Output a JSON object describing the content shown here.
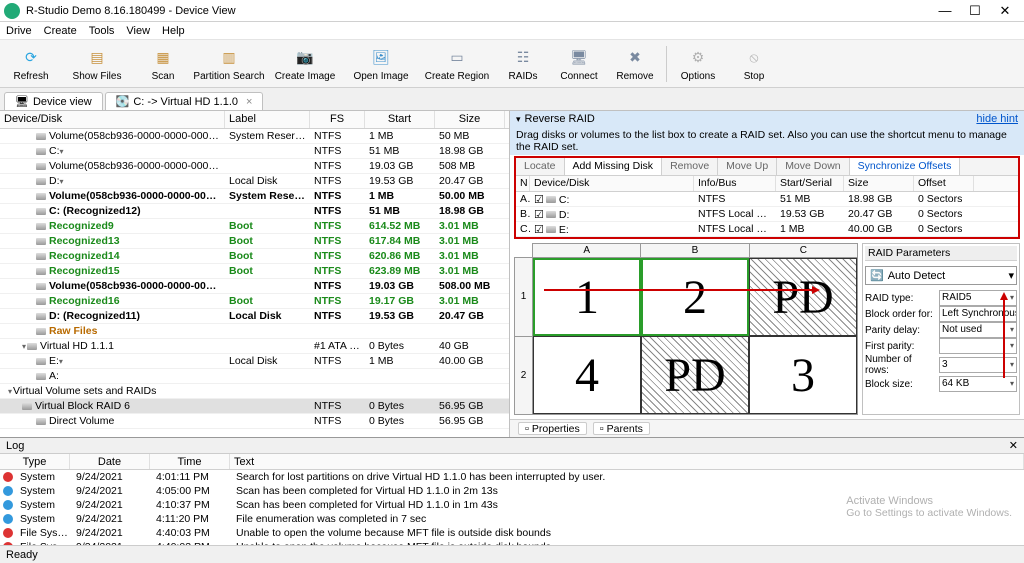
{
  "window": {
    "title": "R-Studio Demo 8.16.180499 - Device View",
    "controls": {
      "min": "—",
      "max": "☐",
      "close": "✕"
    }
  },
  "menu": [
    "Drive",
    "Create",
    "Tools",
    "View",
    "Help"
  ],
  "toolbar": [
    {
      "label": "Refresh",
      "color": "#2aa5e0",
      "glyph": "⟳"
    },
    {
      "label": "Show Files",
      "color": "#c7923e",
      "glyph": "▤"
    },
    {
      "label": "Scan",
      "color": "#c7923e",
      "glyph": "▦"
    },
    {
      "label": "Partition Search",
      "color": "#c7923e",
      "glyph": "▥"
    },
    {
      "label": "Create Image",
      "color": "#3a8ecc",
      "glyph": "📷"
    },
    {
      "label": "Open Image",
      "color": "#3a8ecc",
      "glyph": "🖼"
    },
    {
      "label": "Create Region",
      "color": "#7a8aa0",
      "glyph": "▭"
    },
    {
      "label": "RAIDs",
      "color": "#7a8aa0",
      "glyph": "☷"
    },
    {
      "label": "Connect",
      "color": "#7a8aa0",
      "glyph": "🖥"
    },
    {
      "label": "Remove",
      "color": "#7a8aa0",
      "glyph": "✖"
    },
    {
      "label": "Options",
      "color": "#b0b0b0",
      "glyph": "⚙"
    },
    {
      "label": "Stop",
      "color": "#b0b0b0",
      "glyph": "⦸"
    }
  ],
  "tabs": [
    {
      "label": "Device view",
      "icon": "🖥"
    },
    {
      "label": "C: -> Virtual HD 1.1.0",
      "icon": "💽"
    }
  ],
  "deviceGrid": {
    "headers": [
      "Device/Disk",
      "Label",
      "FS",
      "Start",
      "Size"
    ],
    "rows": [
      {
        "indent": 2,
        "icon": "disk",
        "name": "Volume(058cb936-0000-0000-0000-…",
        "arrow": true,
        "label": "System Reserved",
        "fs": "NTFS",
        "start": "1 MB",
        "size": "50 MB"
      },
      {
        "indent": 2,
        "icon": "disk",
        "name": "C:",
        "arrow": true,
        "label": "",
        "fs": "NTFS",
        "start": "51 MB",
        "size": "18.98 GB"
      },
      {
        "indent": 2,
        "icon": "disk",
        "name": "Volume(058cb936-0000-0000-0000-…",
        "arrow": true,
        "label": "",
        "fs": "NTFS",
        "start": "19.03 GB",
        "size": "508 MB"
      },
      {
        "indent": 2,
        "icon": "disk",
        "name": "D:",
        "arrow": true,
        "label": "Local Disk",
        "fs": "NTFS",
        "start": "19.53 GB",
        "size": "20.47 GB"
      },
      {
        "indent": 2,
        "icon": "vol",
        "bold": true,
        "name": "Volume(058cb936-0000-0000-00…",
        "label": "System Reserved",
        "fs": "NTFS",
        "start": "1 MB",
        "size": "50.00 MB"
      },
      {
        "indent": 2,
        "icon": "vol",
        "bold": true,
        "name": "C: (Recognized12)",
        "label": "",
        "fs": "NTFS",
        "start": "51 MB",
        "size": "18.98 GB"
      },
      {
        "indent": 2,
        "icon": "rec",
        "green": true,
        "name": "Recognized9",
        "label": "Boot",
        "labelGreen": true,
        "fs": "NTFS",
        "fsGreen": true,
        "start": "614.52 MB",
        "startGreen": true,
        "size": "3.01 MB",
        "sizeGreen": true
      },
      {
        "indent": 2,
        "icon": "rec",
        "green": true,
        "name": "Recognized13",
        "label": "Boot",
        "labelGreen": true,
        "fs": "NTFS",
        "fsGreen": true,
        "start": "617.84 MB",
        "startGreen": true,
        "size": "3.01 MB",
        "sizeGreen": true
      },
      {
        "indent": 2,
        "icon": "rec",
        "green": true,
        "name": "Recognized14",
        "label": "Boot",
        "labelGreen": true,
        "fs": "NTFS",
        "fsGreen": true,
        "start": "620.86 MB",
        "startGreen": true,
        "size": "3.01 MB",
        "sizeGreen": true
      },
      {
        "indent": 2,
        "icon": "rec",
        "green": true,
        "name": "Recognized15",
        "label": "Boot",
        "labelGreen": true,
        "fs": "NTFS",
        "fsGreen": true,
        "start": "623.89 MB",
        "startGreen": true,
        "size": "3.01 MB",
        "sizeGreen": true
      },
      {
        "indent": 2,
        "icon": "vol",
        "bold": true,
        "name": "Volume(058cb936-0000-0000-00…",
        "label": "",
        "fs": "NTFS",
        "start": "19.03 GB",
        "size": "508.00 MB"
      },
      {
        "indent": 2,
        "icon": "rec",
        "green": true,
        "name": "Recognized16",
        "label": "Boot",
        "labelGreen": true,
        "fs": "NTFS",
        "fsGreen": true,
        "start": "19.17 GB",
        "startGreen": true,
        "size": "3.01 MB",
        "sizeGreen": true
      },
      {
        "indent": 2,
        "icon": "vol",
        "bold": true,
        "name": "D: (Recognized11)",
        "label": "Local Disk",
        "fs": "NTFS",
        "start": "19.53 GB",
        "size": "20.47 GB"
      },
      {
        "indent": 2,
        "icon": "raw",
        "orange": true,
        "name": "Raw Files",
        "label": "",
        "fs": "",
        "start": "",
        "size": ""
      },
      {
        "indent": 1,
        "expand": "open",
        "icon": "hd",
        "name": "Virtual HD 1.1.1",
        "label": "",
        "fs": "#1 ATA …",
        "start": "0 Bytes",
        "size": "40 GB"
      },
      {
        "indent": 2,
        "icon": "disk",
        "name": "E:",
        "arrow": true,
        "label": "Local Disk",
        "fs": "NTFS",
        "start": "1 MB",
        "size": "40.00 GB"
      },
      {
        "indent": 2,
        "icon": "disk",
        "name": "A:",
        "label": "",
        "fs": "",
        "start": "",
        "size": ""
      },
      {
        "indent": 0,
        "expand": "open",
        "name": "Virtual Volume sets and RAIDs",
        "label": "",
        "fs": "",
        "start": "",
        "size": ""
      },
      {
        "indent": 1,
        "icon": "raid",
        "hl": true,
        "name": "Virtual Block RAID 6",
        "label": "",
        "fs": "NTFS",
        "start": "0 Bytes",
        "size": "56.95 GB"
      },
      {
        "indent": 2,
        "icon": "disk",
        "name": "Direct Volume",
        "label": "",
        "fs": "NTFS",
        "start": "0 Bytes",
        "size": "56.95 GB"
      }
    ]
  },
  "reverse": {
    "title": "Reverse RAID",
    "hide": "hide hint",
    "desc": "Drag disks or volumes to the list box to create a RAID set. Also you can use the shortcut menu to manage the RAID set.",
    "tabs": [
      "Locate",
      "Add Missing Disk",
      "Remove",
      "Move Up",
      "Move Down",
      "Synchronize Offsets"
    ],
    "activeTab": 1,
    "headers": [
      "N",
      "Device/Disk",
      "Info/Bus",
      "Start/Serial",
      "Size",
      "Offset"
    ],
    "rows": [
      {
        "n": "A",
        "dev": "C:",
        "info": "NTFS",
        "start": "51 MB",
        "size": "18.98 GB",
        "off": "0 Sectors"
      },
      {
        "n": "B",
        "dev": "D:",
        "info": "NTFS Local Disk",
        "start": "19.53 GB",
        "size": "20.47 GB",
        "off": "0 Sectors"
      },
      {
        "n": "C",
        "dev": "E:",
        "info": "NTFS Local Disk",
        "start": "1 MB",
        "size": "40.00 GB",
        "off": "0 Sectors"
      }
    ]
  },
  "layout": {
    "cols": [
      "A",
      "B",
      "C"
    ],
    "rownums": [
      "1",
      "2"
    ],
    "cells": [
      {
        "txt": "1",
        "green": true
      },
      {
        "txt": "2",
        "green": true
      },
      {
        "txt": "PD",
        "hatch": true
      },
      {
        "txt": "4"
      },
      {
        "txt": "PD",
        "hatch": true
      },
      {
        "txt": "3"
      }
    ]
  },
  "params": {
    "title": "RAID Parameters",
    "autodetect": "Auto Detect",
    "rows": [
      {
        "l": "RAID type:",
        "v": "RAID5"
      },
      {
        "l": "Block order for:",
        "v": "Left Synchronous (Stan"
      },
      {
        "l": "Parity delay:",
        "v": "Not used"
      },
      {
        "l": "First parity:",
        "v": ""
      },
      {
        "l": "Number of rows:",
        "v": "3"
      },
      {
        "l": "Block size:",
        "v": "64 KB"
      }
    ]
  },
  "propTabs": [
    "Properties",
    "Parents"
  ],
  "log": {
    "title": "Log",
    "headers": [
      "Type",
      "Date",
      "Time",
      "Text"
    ],
    "rows": [
      {
        "dot": "red",
        "type": "System",
        "date": "9/24/2021",
        "time": "4:01:11 PM",
        "text": "Search for lost partitions on drive Virtual HD 1.1.0 has been interrupted by user."
      },
      {
        "dot": "blue",
        "type": "System",
        "date": "9/24/2021",
        "time": "4:05:00 PM",
        "text": "Scan has been completed for Virtual HD 1.1.0 in 2m 13s"
      },
      {
        "dot": "blue",
        "type": "System",
        "date": "9/24/2021",
        "time": "4:10:37 PM",
        "text": "Scan has been completed for Virtual HD 1.1.0 in 1m 43s"
      },
      {
        "dot": "blue",
        "type": "System",
        "date": "9/24/2021",
        "time": "4:11:20 PM",
        "text": "File enumeration was completed in 7 sec"
      },
      {
        "dot": "red",
        "type": "File System",
        "date": "9/24/2021",
        "time": "4:40:03 PM",
        "text": "Unable to open the volume because MFT file is outside disk bounds"
      },
      {
        "dot": "red",
        "type": "File System",
        "date": "9/24/2021",
        "time": "4:40:03 PM",
        "text": "Unable to open the volume because MFT file is outside disk bounds"
      }
    ]
  },
  "status": "Ready",
  "watermark": {
    "t1": "Activate Windows",
    "t2": "Go to Settings to activate Windows."
  }
}
